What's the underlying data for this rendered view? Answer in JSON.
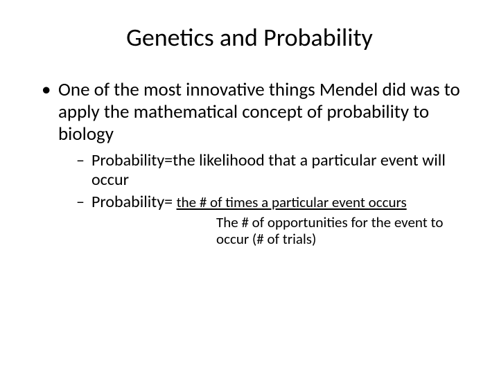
{
  "background_color": "#ffffff",
  "text_color": "#000000",
  "font_family": "Calibri",
  "title": {
    "text": "Genetics and Probability",
    "fontsize": 36,
    "weight": "normal",
    "align": "center"
  },
  "bullets": [
    {
      "level": 1,
      "text": "One of the most innovative things Mendel did was to apply the mathematical concept of probability to biology",
      "fontsize": 27,
      "children": [
        {
          "level": 2,
          "text": "Probability=the likelihood that a particular event will occur",
          "fontsize": 24
        },
        {
          "level": 2,
          "prefix": "Probability= ",
          "numerator": "the # of times a particular event occurs",
          "denominator": "The # of opportunities for the event to occur (# of trials)",
          "fontsize": 24,
          "fraction_fontsize": 21
        }
      ]
    }
  ]
}
